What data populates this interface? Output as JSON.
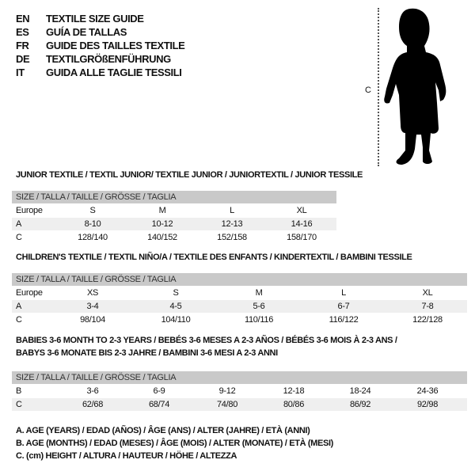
{
  "header": [
    {
      "code": "EN",
      "text": "TEXTILE SIZE GUIDE"
    },
    {
      "code": "ES",
      "text": "GUÍA DE TALLAS"
    },
    {
      "code": "FR",
      "text": "GUIDE DES TAILLES TEXTILE"
    },
    {
      "code": "DE",
      "text": "TEXTILGRÖßENFÜHRUNG"
    },
    {
      "code": "IT",
      "text": "GUIDA ALLE TAGLIE TESSILI"
    }
  ],
  "figure": {
    "measure_label": "C",
    "icon": "child-silhouette"
  },
  "tables": [
    {
      "titles": [
        "JUNIOR TEXTILE / TEXTIL JUNIOR/ TEXTILE JUNIOR / JUNIORTEXTIL / JUNIOR TESSILE"
      ],
      "size_header": "SIZE / TALLA / TAILLE / GRÖSSE / TAGLIA",
      "rows": [
        {
          "label": "Europe",
          "values": [
            "S",
            "M",
            "L",
            "XL"
          ]
        },
        {
          "label": "A",
          "values": [
            "8-10",
            "10-12",
            "12-13",
            "14-16"
          ]
        },
        {
          "label": "C",
          "values": [
            "128/140",
            "140/152",
            "152/158",
            "158/170"
          ]
        }
      ]
    },
    {
      "titles": [
        "CHILDREN'S TEXTILE / TEXTIL NIÑO/A / TEXTILE DES ENFANTS / KINDERTEXTIL / BAMBINI TESSILE"
      ],
      "size_header": "SIZE / TALLA / TAILLE / GRÖSSE / TAGLIA",
      "rows": [
        {
          "label": "Europe",
          "values": [
            "XS",
            "S",
            "M",
            "L",
            "XL"
          ]
        },
        {
          "label": "A",
          "values": [
            "3-4",
            "4-5",
            "5-6",
            "6-7",
            "7-8"
          ]
        },
        {
          "label": "C",
          "values": [
            "98/104",
            "104/110",
            "110/116",
            "116/122",
            "122/128"
          ]
        }
      ]
    },
    {
      "titles": [
        "BABIES 3-6 MONTH TO 2-3 YEARS / BEBÉS 3-6 MESES A 2-3 AÑOS / BÉBÉS 3-6 MOIS À 2-3 ANS /",
        "BABYS 3-6 MONATE BIS 2-3 JAHRE / BAMBINI 3-6 MESI A 2-3 ANNI"
      ],
      "size_header": "SIZE / TALLA / TAILLE / GRÖSSE / TAGLIA",
      "rows": [
        {
          "label": "B",
          "values": [
            "3-6",
            "6-9",
            "9-12",
            "12-18",
            "18-24",
            "24-36"
          ]
        },
        {
          "label": "C",
          "values": [
            "62/68",
            "68/74",
            "74/80",
            "80/86",
            "86/92",
            "92/98"
          ]
        }
      ]
    }
  ],
  "legend": [
    "A. AGE (YEARS) / EDAD (AÑOS) / ÂGE (ANS) / ALTER (JAHRE) / ETÀ (ANNI)",
    "B. AGE (MONTHS) / EDAD (MESES) / ÂGE (MOIS) / ALTER (MONATE) / ETÀ (MESI)",
    "C. (cm) HEIGHT / ALTURA / HAUTEUR / HÖHE / ALTEZZA"
  ]
}
